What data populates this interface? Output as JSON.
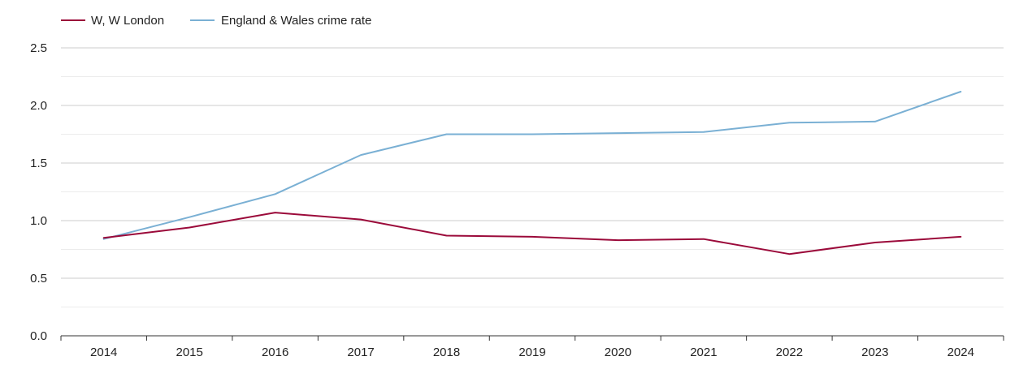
{
  "chart_data": {
    "type": "line",
    "title": "",
    "xlabel": "",
    "ylabel": "",
    "categories": [
      "2014",
      "2015",
      "2016",
      "2017",
      "2018",
      "2019",
      "2020",
      "2021",
      "2022",
      "2023",
      "2024"
    ],
    "ylim": [
      0,
      2.5
    ],
    "y_ticks": [
      "0.0",
      "0.5",
      "1.0",
      "1.5",
      "2.0",
      "2.5"
    ],
    "y_tick_values": [
      0,
      0.5,
      1.0,
      1.5,
      2.0,
      2.5
    ],
    "grid": true,
    "legend_position": "top-left",
    "series": [
      {
        "name": "W, W London",
        "color": "#9b0a3a",
        "values": [
          0.85,
          0.94,
          1.07,
          1.01,
          0.87,
          0.86,
          0.83,
          0.84,
          0.71,
          0.81,
          0.86
        ]
      },
      {
        "name": "England & Wales crime rate",
        "color": "#7ab0d4",
        "values": [
          0.84,
          1.03,
          1.23,
          1.57,
          1.75,
          1.75,
          1.76,
          1.77,
          1.85,
          1.86,
          2.12
        ]
      }
    ]
  }
}
